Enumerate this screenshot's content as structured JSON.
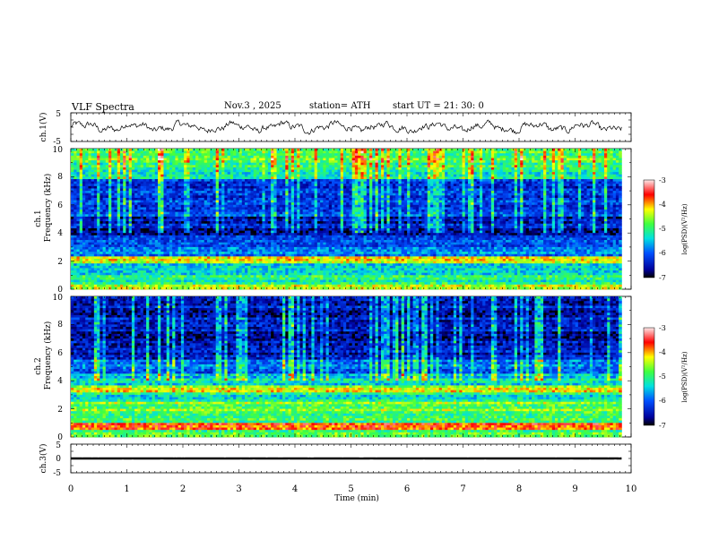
{
  "header": {
    "title": "VLF  Spectra",
    "date": "Nov.3  , 2025",
    "station": "station= ATH",
    "start": "start  UT  =   21: 30: 0"
  },
  "chart_data": [
    {
      "type": "line",
      "name": "ch1-waveform",
      "ylabel": "ch.1(V)",
      "ylim": [
        -5,
        5
      ],
      "yticks": [
        "5",
        "-5"
      ],
      "xlim": [
        0,
        10
      ],
      "x_end": 9.83,
      "approx_level": 0,
      "approx_amplitude": 2.2,
      "color": "#000000"
    },
    {
      "type": "heatmap",
      "name": "ch1-spectrogram",
      "ylabel": "ch.1\nFrequency  (kHz)",
      "ylim": [
        0,
        10
      ],
      "yticks": [
        "0",
        "2",
        "4",
        "6",
        "8",
        "10"
      ],
      "xlim": [
        0,
        10
      ],
      "x_end": 9.83,
      "bands": [
        {
          "from": 0,
          "to": 0.3,
          "level": -4.6
        },
        {
          "from": 0.3,
          "to": 1.0,
          "level": -5.2
        },
        {
          "from": 1.0,
          "to": 1.8,
          "level": -5.6
        },
        {
          "from": 1.8,
          "to": 2.3,
          "level": -4.3
        },
        {
          "from": 2.3,
          "to": 3.0,
          "level": -5.8
        },
        {
          "from": 3.0,
          "to": 3.8,
          "level": -6.0
        },
        {
          "from": 3.8,
          "to": 5.2,
          "level": -6.5
        },
        {
          "from": 5.2,
          "to": 7.8,
          "level": -6.2
        },
        {
          "from": 7.8,
          "to": 9.0,
          "level": -5.2
        },
        {
          "from": 9.0,
          "to": 10.0,
          "level": -4.8
        }
      ],
      "colorbar": {
        "label": "log(PSD)(V²/Hz)",
        "min": -7,
        "max": -3,
        "ticks": [
          "-3",
          "-4",
          "-5",
          "-6",
          "-7"
        ]
      }
    },
    {
      "type": "heatmap",
      "name": "ch2-spectrogram",
      "ylabel": "ch.2\nFrequency  (kHz)",
      "ylim": [
        0,
        10
      ],
      "yticks": [
        "0",
        "2",
        "4",
        "6",
        "8",
        "10"
      ],
      "xlim": [
        0,
        10
      ],
      "x_end": 9.83,
      "bands": [
        {
          "from": 0,
          "to": 0.5,
          "level": -4.8
        },
        {
          "from": 0.5,
          "to": 1.0,
          "level": -3.6
        },
        {
          "from": 1.0,
          "to": 1.8,
          "level": -4.9
        },
        {
          "from": 1.8,
          "to": 2.5,
          "level": -4.7
        },
        {
          "from": 2.5,
          "to": 3.2,
          "level": -5.2
        },
        {
          "from": 3.2,
          "to": 3.7,
          "level": -4.4
        },
        {
          "from": 3.7,
          "to": 4.5,
          "level": -5.4
        },
        {
          "from": 4.5,
          "to": 5.5,
          "level": -5.9
        },
        {
          "from": 5.5,
          "to": 10.0,
          "level": -6.5
        }
      ],
      "colorbar": {
        "label": "log(PSD)(V²/Hz)",
        "min": -7,
        "max": -3,
        "ticks": [
          "-3",
          "-4",
          "-5",
          "-6",
          "-7"
        ]
      }
    },
    {
      "type": "line",
      "name": "ch3-waveform",
      "ylabel": "ch.3(V)",
      "ylim": [
        -5,
        5
      ],
      "yticks": [
        "5",
        "0",
        "-5"
      ],
      "xlim": [
        0,
        10
      ],
      "x_end": 9.83,
      "approx_level": 0,
      "approx_amplitude": 0.2,
      "color": "#000000"
    }
  ],
  "xaxis": {
    "label": "Time  (min)",
    "ticks": [
      "0",
      "1",
      "2",
      "3",
      "4",
      "5",
      "6",
      "7",
      "8",
      "9",
      "10"
    ]
  }
}
